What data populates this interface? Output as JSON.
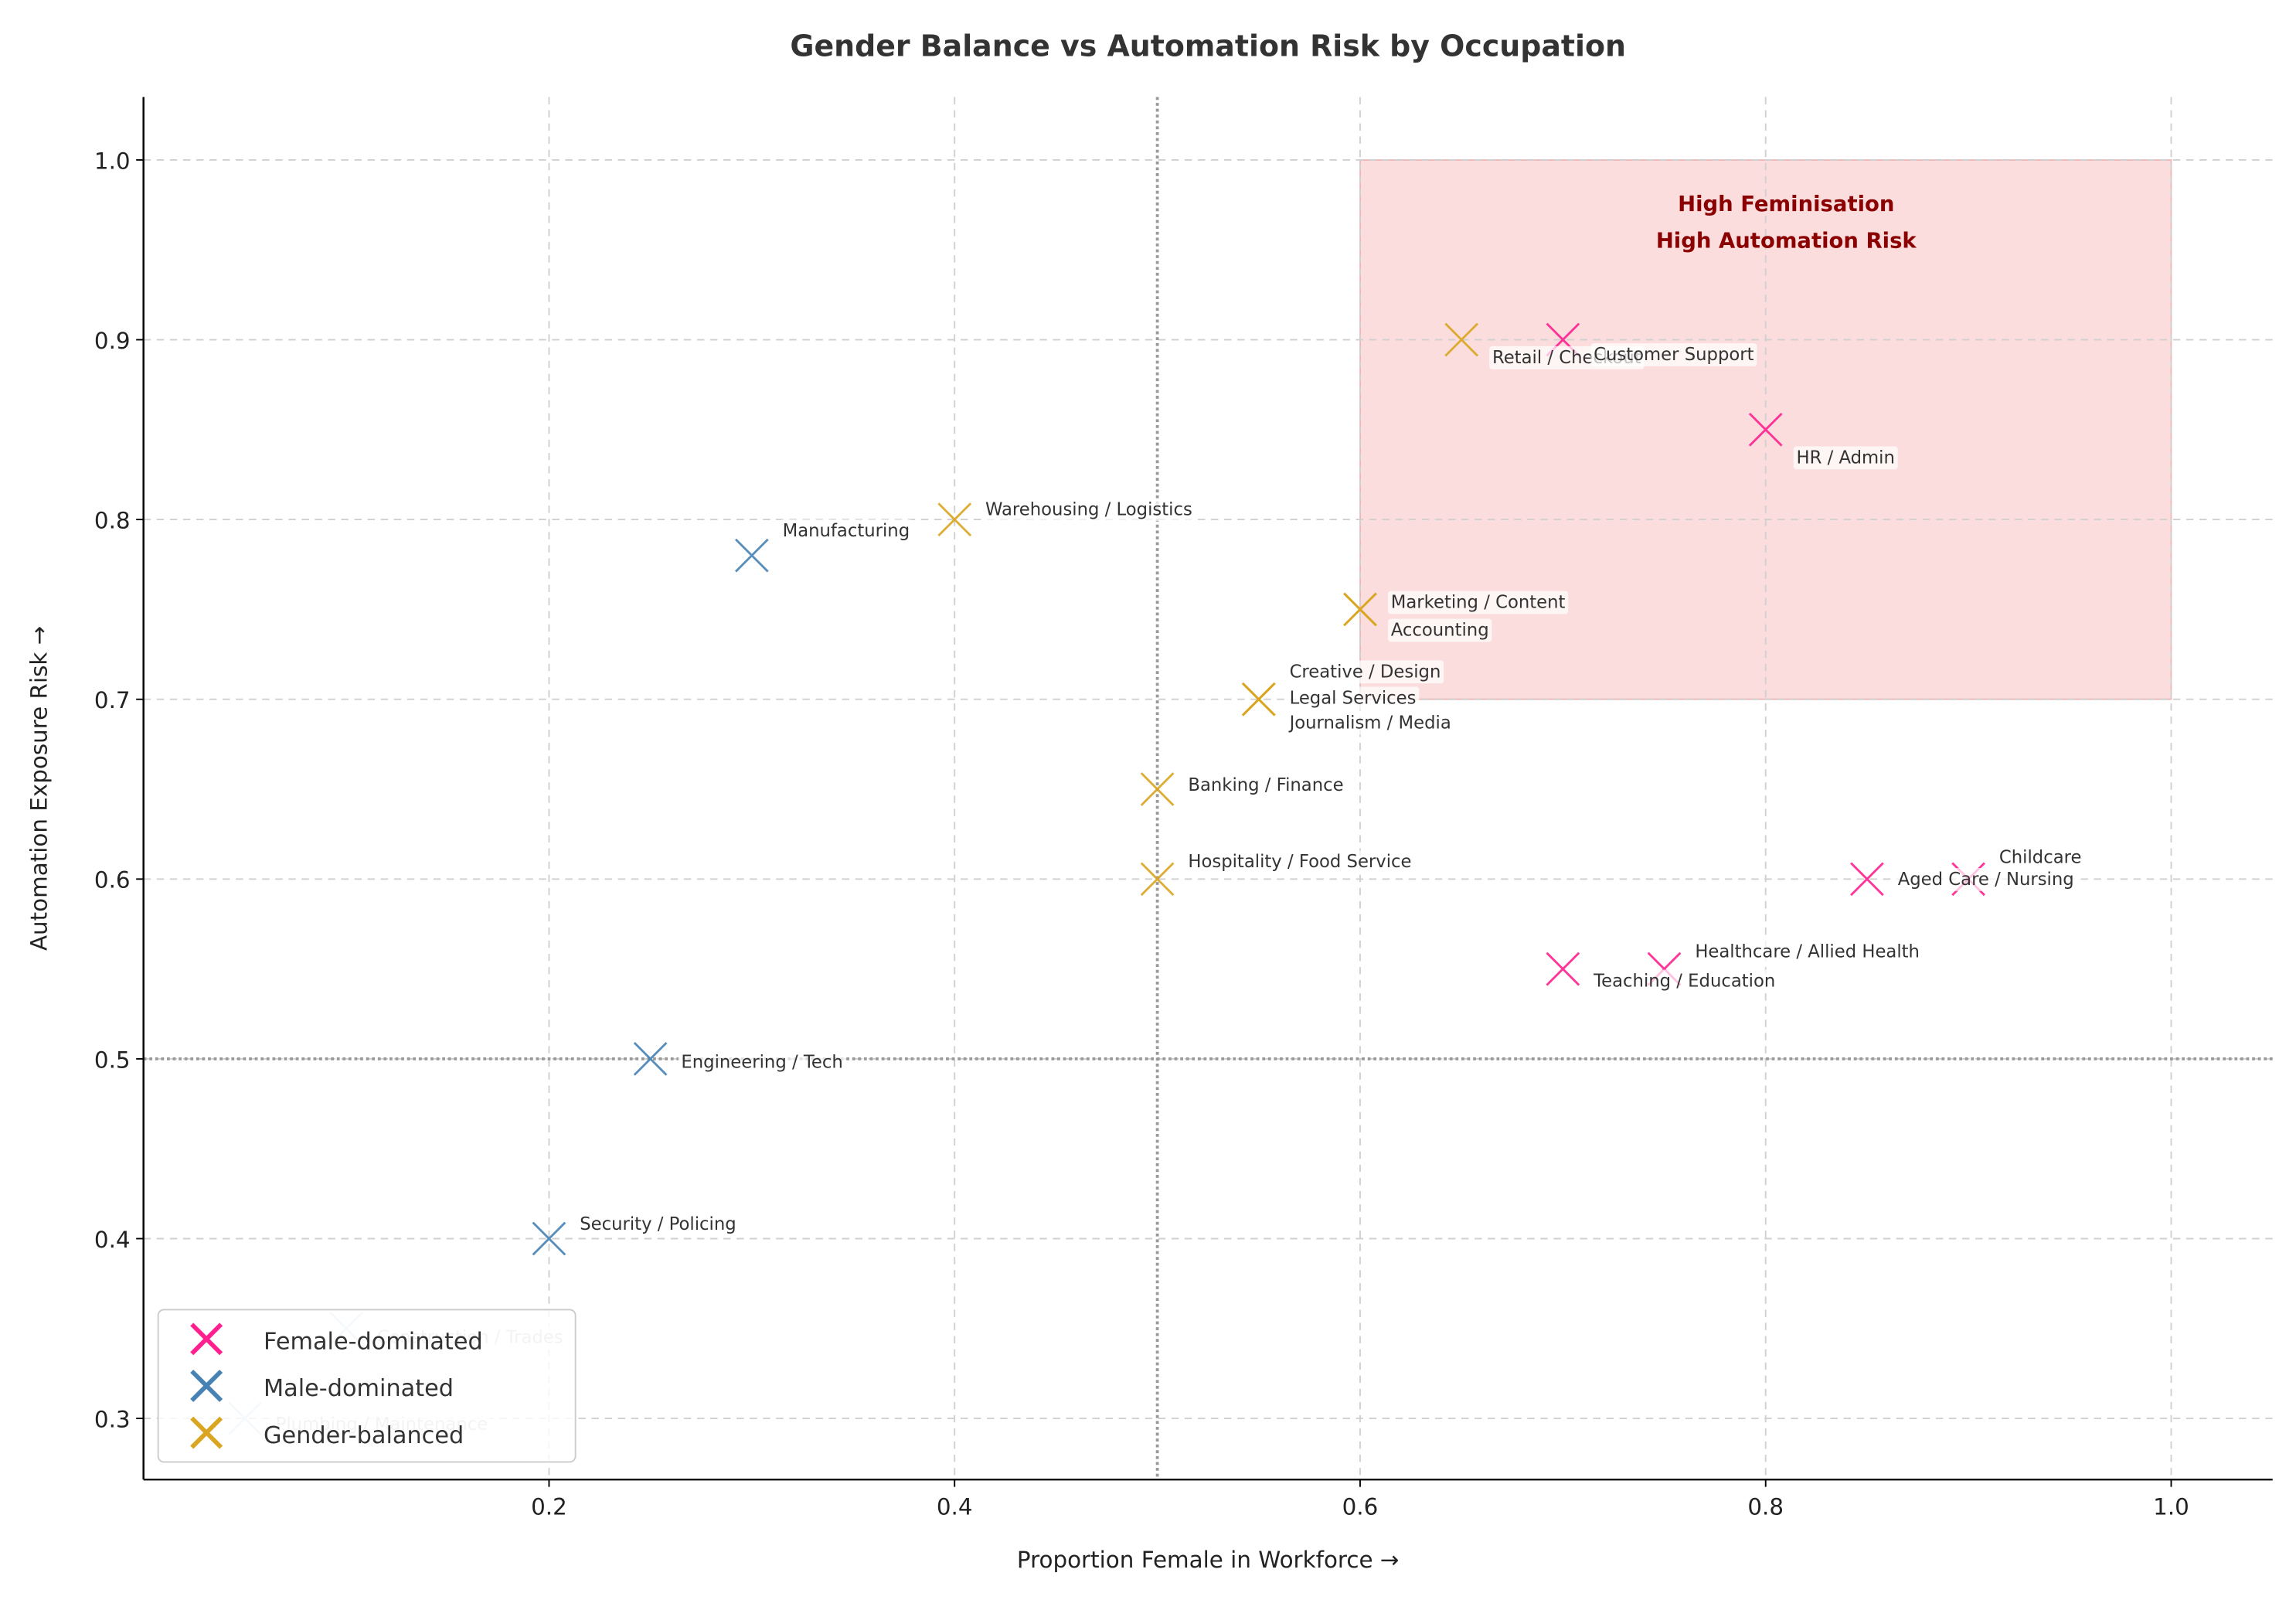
{
  "chart_data": {
    "type": "scatter",
    "title": "Gender Balance vs Automation Risk by Occupation",
    "xlabel": "Proportion Female in Workforce →",
    "ylabel": "Automation Exposure Risk →",
    "xlim": [
      0.0,
      1.05
    ],
    "ylim": [
      0.266,
      1.035
    ],
    "xticks": [
      "0.2",
      "0.4",
      "0.6",
      "0.8",
      "1.0"
    ],
    "xtick_values": [
      0.2,
      0.4,
      0.6,
      0.8,
      1.0
    ],
    "yticks": [
      "0.3",
      "0.4",
      "0.5",
      "0.6",
      "0.7",
      "0.8",
      "0.9",
      "1.0"
    ],
    "ytick_values": [
      0.3,
      0.4,
      0.5,
      0.6,
      0.7,
      0.8,
      0.9,
      1.0
    ],
    "grid": true,
    "reference_lines": {
      "x": 0.5,
      "y": 0.5
    },
    "highlight_region": {
      "x": [
        0.6,
        1.0
      ],
      "y": [
        0.7,
        1.0
      ],
      "label_line1": "High Feminisation",
      "label_line2": "High Automation Risk",
      "color": "#f4a6a6",
      "text_color": "#8b0000"
    },
    "legend": {
      "placement": "lower-left",
      "entries": [
        {
          "key": "female",
          "label": "Female-dominated",
          "color": "#ff1f8f"
        },
        {
          "key": "male",
          "label": "Male-dominated",
          "color": "#4682b4"
        },
        {
          "key": "balanced",
          "label": "Gender-balanced",
          "color": "#daa520"
        }
      ]
    },
    "points": [
      {
        "label": "Retail / Checkout",
        "x": 0.65,
        "y": 0.9,
        "group": "balanced"
      },
      {
        "label": "Customer Support",
        "x": 0.7,
        "y": 0.9,
        "group": "female"
      },
      {
        "label": "HR / Admin",
        "x": 0.8,
        "y": 0.85,
        "group": "female"
      },
      {
        "label": "Warehousing / Logistics",
        "x": 0.4,
        "y": 0.8,
        "group": "balanced"
      },
      {
        "label": "Manufacturing",
        "x": 0.3,
        "y": 0.78,
        "group": "male"
      },
      {
        "label": "Marketing / Content",
        "x": 0.6,
        "y": 0.75,
        "group": "balanced"
      },
      {
        "label": "Accounting",
        "x": 0.6,
        "y": 0.75,
        "group": "balanced"
      },
      {
        "label": "Creative / Design",
        "x": 0.55,
        "y": 0.7,
        "group": "balanced"
      },
      {
        "label": "Legal Services",
        "x": 0.55,
        "y": 0.7,
        "group": "balanced"
      },
      {
        "label": "Journalism / Media",
        "x": 0.55,
        "y": 0.7,
        "group": "balanced"
      },
      {
        "label": "Banking / Finance",
        "x": 0.5,
        "y": 0.65,
        "group": "balanced"
      },
      {
        "label": "Hospitality / Food Service",
        "x": 0.5,
        "y": 0.6,
        "group": "balanced"
      },
      {
        "label": "Childcare",
        "x": 0.9,
        "y": 0.6,
        "group": "female"
      },
      {
        "label": "Aged Care / Nursing",
        "x": 0.85,
        "y": 0.6,
        "group": "female"
      },
      {
        "label": "Healthcare / Allied Health",
        "x": 0.75,
        "y": 0.55,
        "group": "female"
      },
      {
        "label": "Teaching / Education",
        "x": 0.7,
        "y": 0.55,
        "group": "female"
      },
      {
        "label": "Engineering / Tech",
        "x": 0.25,
        "y": 0.5,
        "group": "male"
      },
      {
        "label": "Security / Policing",
        "x": 0.2,
        "y": 0.4,
        "group": "male"
      },
      {
        "label": "Construction / Trades",
        "x": 0.1,
        "y": 0.35,
        "group": "male"
      },
      {
        "label": "Plumbing / Maintenance",
        "x": 0.05,
        "y": 0.3,
        "group": "male"
      }
    ]
  }
}
